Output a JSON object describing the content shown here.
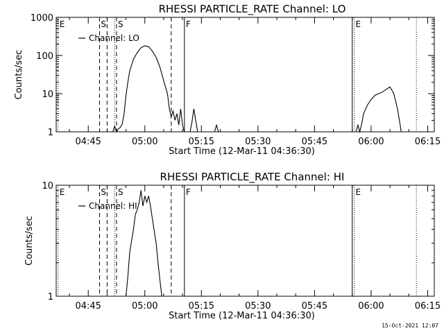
{
  "timestamp": "15-Oct-2021 12:07",
  "chart_data": [
    {
      "type": "line",
      "title": "RHESSI PARTICLE_RATE Channel: LO",
      "xlabel": "Start Time (12-Mar-11 04:36:30)",
      "ylabel": "Counts/sec",
      "yscale": "log",
      "ylim": [
        1,
        1000
      ],
      "xlim": [
        "04:36:30",
        "06:16:45"
      ],
      "yticks": [
        {
          "value": 1,
          "label": "1"
        },
        {
          "value": 10,
          "label": "10"
        },
        {
          "value": 100,
          "label": "100"
        },
        {
          "value": 1000,
          "label": "1000"
        }
      ],
      "xticks": [
        {
          "value": "04:45",
          "label": "04:45"
        },
        {
          "value": "05:00",
          "label": "05:00"
        },
        {
          "value": "05:15",
          "label": "05:15"
        },
        {
          "value": "05:30",
          "label": "05:30"
        },
        {
          "value": "05:45",
          "label": "05:45"
        },
        {
          "value": "06:00",
          "label": "06:00"
        },
        {
          "value": "06:15",
          "label": "06:15"
        }
      ],
      "legend": {
        "label": "Channel: LO",
        "placement": "top-left"
      },
      "markers": [
        {
          "time": "04:37:00",
          "style": "dotted",
          "label": "E"
        },
        {
          "time": "04:48:00",
          "style": "dashed",
          "label": "S"
        },
        {
          "time": "04:50:00",
          "style": "dashed",
          "label": ""
        },
        {
          "time": "04:52:00",
          "style": "dotted",
          "label": ""
        },
        {
          "time": "04:52:30",
          "style": "dashed",
          "label": "S"
        },
        {
          "time": "05:07:00",
          "style": "dashed",
          "label": ""
        },
        {
          "time": "05:10:30",
          "style": "solid",
          "label": "F"
        },
        {
          "time": "05:55:00",
          "style": "solid",
          "label": ""
        },
        {
          "time": "05:55:30",
          "style": "dotted",
          "label": "E"
        },
        {
          "time": "06:12:00",
          "style": "dotted",
          "label": ""
        }
      ],
      "series": [
        {
          "name": "Channel: LO",
          "segments": [
            [
              [
                "04:51:30",
                1
              ],
              [
                "04:52:00",
                1.4
              ],
              [
                "04:52:30",
                1
              ],
              [
                "04:53:00",
                1.2
              ],
              [
                "04:53:30",
                1.3
              ],
              [
                "04:54:00",
                1.6
              ],
              [
                "04:54:30",
                3
              ],
              [
                "04:55:00",
                9
              ],
              [
                "04:55:30",
                20
              ],
              [
                "04:56:00",
                40
              ],
              [
                "04:57:00",
                80
              ],
              [
                "04:58:00",
                120
              ],
              [
                "04:59:00",
                160
              ],
              [
                "05:00:00",
                180
              ],
              [
                "05:01:00",
                170
              ],
              [
                "05:02:00",
                130
              ],
              [
                "05:03:00",
                90
              ],
              [
                "05:04:00",
                50
              ],
              [
                "05:05:00",
                22
              ],
              [
                "05:06:00",
                10
              ],
              [
                "05:06:30",
                4
              ],
              [
                "05:07:00",
                2.5
              ],
              [
                "05:07:30",
                3.5
              ],
              [
                "05:08:00",
                2
              ],
              [
                "05:08:30",
                3
              ],
              [
                "05:09:00",
                1.5
              ],
              [
                "05:09:30",
                4
              ],
              [
                "05:10:00",
                1.5
              ],
              [
                "05:10:30",
                1
              ]
            ],
            [
              [
                "05:12:00",
                1
              ],
              [
                "05:12:30",
                1.8
              ],
              [
                "05:13:00",
                4
              ],
              [
                "05:13:30",
                2
              ],
              [
                "05:14:00",
                1
              ]
            ],
            [
              [
                "05:18:30",
                1
              ],
              [
                "05:19:00",
                1.5
              ],
              [
                "05:19:30",
                1
              ]
            ],
            [
              [
                "05:56:00",
                1
              ],
              [
                "05:56:30",
                1.5
              ],
              [
                "05:57:00",
                1
              ],
              [
                "05:57:30",
                1.6
              ],
              [
                "05:58:00",
                3
              ],
              [
                "05:59:00",
                5
              ],
              [
                "06:00:00",
                7
              ],
              [
                "06:01:00",
                9
              ],
              [
                "06:02:00",
                10
              ],
              [
                "06:03:00",
                11
              ],
              [
                "06:04:00",
                13
              ],
              [
                "06:05:00",
                15
              ],
              [
                "06:06:00",
                10
              ],
              [
                "06:07:00",
                4
              ],
              [
                "06:07:30",
                2
              ],
              [
                "06:08:00",
                1
              ]
            ]
          ]
        }
      ]
    },
    {
      "type": "line",
      "title": "RHESSI PARTICLE_RATE Channel: HI",
      "xlabel": "Start Time (12-Mar-11 04:36:30)",
      "ylabel": "Counts/sec",
      "yscale": "log",
      "ylim": [
        1,
        10
      ],
      "xlim": [
        "04:36:30",
        "06:16:45"
      ],
      "yticks": [
        {
          "value": 1,
          "label": "1"
        },
        {
          "value": 10,
          "label": "10"
        }
      ],
      "xticks": [
        {
          "value": "04:45",
          "label": "04:45"
        },
        {
          "value": "05:00",
          "label": "05:00"
        },
        {
          "value": "05:15",
          "label": "05:15"
        },
        {
          "value": "05:30",
          "label": "05:30"
        },
        {
          "value": "05:45",
          "label": "05:45"
        },
        {
          "value": "06:00",
          "label": "06:00"
        },
        {
          "value": "06:15",
          "label": "06:15"
        }
      ],
      "legend": {
        "label": "Channel: HI",
        "placement": "top-left"
      },
      "markers": [
        {
          "time": "04:37:00",
          "style": "dotted",
          "label": "E"
        },
        {
          "time": "04:48:00",
          "style": "dashed",
          "label": "S"
        },
        {
          "time": "04:50:00",
          "style": "dashed",
          "label": ""
        },
        {
          "time": "04:52:00",
          "style": "dotted",
          "label": ""
        },
        {
          "time": "04:52:30",
          "style": "dashed",
          "label": "S"
        },
        {
          "time": "05:07:00",
          "style": "dashed",
          "label": ""
        },
        {
          "time": "05:10:30",
          "style": "solid",
          "label": "F"
        },
        {
          "time": "05:55:00",
          "style": "solid",
          "label": ""
        },
        {
          "time": "05:55:30",
          "style": "dotted",
          "label": "E"
        },
        {
          "time": "06:12:00",
          "style": "dotted",
          "label": ""
        }
      ],
      "series": [
        {
          "name": "Channel: HI",
          "segments": [
            [
              [
                "04:55:00",
                1
              ],
              [
                "04:55:30",
                1.5
              ],
              [
                "04:56:00",
                2.5
              ],
              [
                "04:57:00",
                4
              ],
              [
                "04:57:30",
                5.5
              ],
              [
                "04:58:00",
                6
              ],
              [
                "04:58:30",
                7
              ],
              [
                "04:59:00",
                9
              ],
              [
                "04:59:30",
                6.5
              ],
              [
                "05:00:00",
                8
              ],
              [
                "05:00:30",
                7
              ],
              [
                "05:01:00",
                8
              ],
              [
                "05:01:30",
                6.5
              ],
              [
                "05:02:00",
                5
              ],
              [
                "05:03:00",
                3
              ],
              [
                "05:03:30",
                2
              ],
              [
                "05:04:00",
                1.4
              ],
              [
                "05:04:30",
                1
              ]
            ]
          ]
        }
      ]
    }
  ]
}
